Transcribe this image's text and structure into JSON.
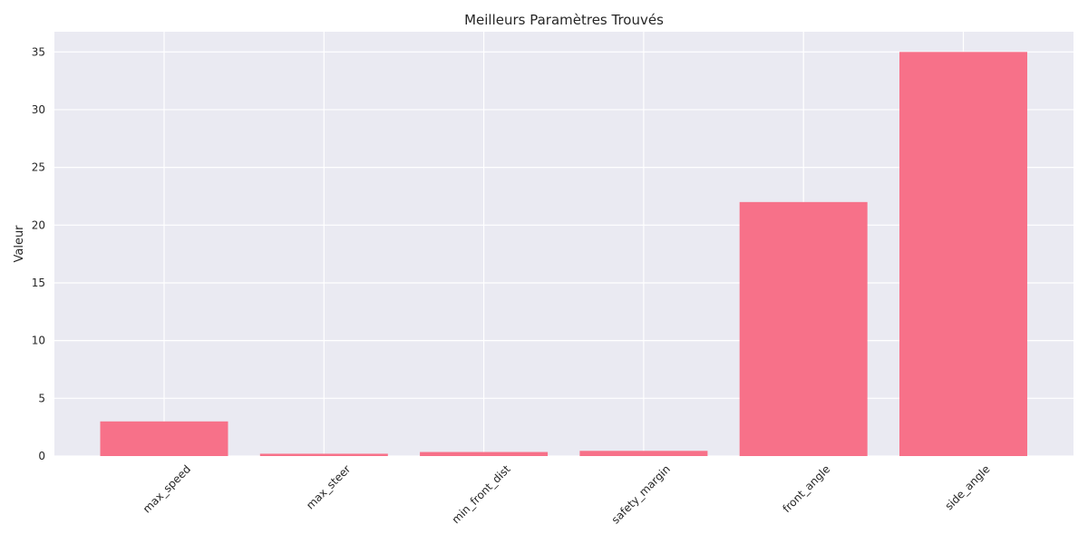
{
  "chart_data": {
    "type": "bar",
    "title": "Meilleurs Paramètres Trouvés",
    "xlabel": "",
    "ylabel": "Valeur",
    "categories": [
      "max_speed",
      "max_steer",
      "min_front_dist",
      "safety_margin",
      "front_angle",
      "side_angle"
    ],
    "values": [
      3.0,
      0.2,
      0.35,
      0.45,
      22.0,
      35.0
    ],
    "ylim": [
      0,
      36.75
    ],
    "yticks": [
      0,
      5,
      10,
      15,
      20,
      25,
      30,
      35
    ],
    "grid": true,
    "colors": {
      "bar": "#f77189",
      "plot_background": "#eaeaf2",
      "grid": "#ffffff"
    }
  }
}
